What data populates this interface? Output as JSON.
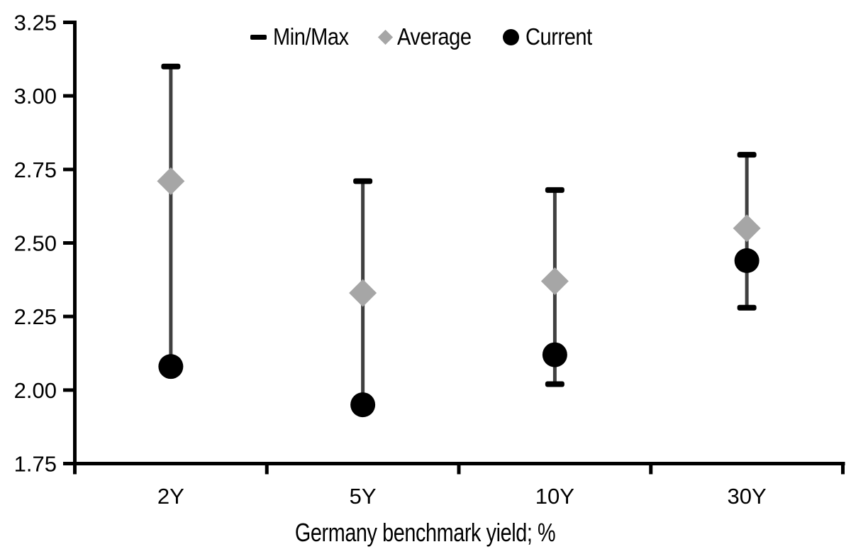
{
  "chart_data": {
    "type": "scatter-range",
    "description": "Range (min/max) bars with average and current markers per maturity",
    "categories": [
      "2Y",
      "5Y",
      "10Y",
      "30Y"
    ],
    "series": [
      {
        "name": "Min/Max",
        "marker": "dash",
        "min": [
          2.08,
          1.95,
          2.02,
          2.28
        ],
        "max": [
          3.1,
          2.71,
          2.68,
          2.8
        ]
      },
      {
        "name": "Average",
        "marker": "diamond",
        "values": [
          2.71,
          2.33,
          2.37,
          2.55
        ]
      },
      {
        "name": "Current",
        "marker": "circle",
        "values": [
          2.08,
          1.95,
          2.12,
          2.44
        ]
      }
    ],
    "xlabel": "Germany benchmark yield; %",
    "ylabel": "",
    "ylim": [
      1.75,
      3.25
    ],
    "y_tick_step": 0.25,
    "y_tick_labels": [
      "1.75",
      "2.00",
      "2.25",
      "2.50",
      "2.75",
      "3.00",
      "3.25"
    ],
    "legend_position": "top",
    "grid": false,
    "colors": {
      "axis": "#000000",
      "range_line": "#404040",
      "range_cap": "#000000",
      "average": "#a6a6a6",
      "current": "#000000",
      "background": "#ffffff",
      "text": "#000000"
    }
  }
}
